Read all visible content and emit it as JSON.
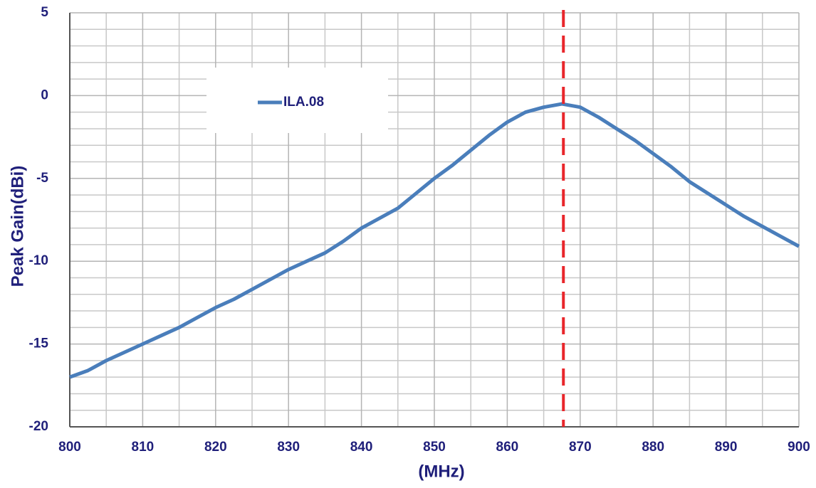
{
  "chart_data": {
    "type": "line",
    "xlabel": "(MHz)",
    "ylabel": "Peak Gain(dBi)",
    "x": [
      800,
      802.5,
      805,
      807.5,
      810,
      812.5,
      815,
      817.5,
      820,
      822.5,
      825,
      827.5,
      830,
      832.5,
      835,
      837.5,
      840,
      842.5,
      845,
      847.5,
      850,
      852.5,
      855,
      857.5,
      860,
      862.5,
      865,
      867.5,
      870,
      872.5,
      875,
      877.5,
      880,
      882.5,
      885,
      887.5,
      890,
      892.5,
      895,
      897.5,
      900
    ],
    "series": [
      {
        "name": "ILA.08",
        "color": "#4a7ebb",
        "values": [
          -17.0,
          -16.6,
          -16.0,
          -15.5,
          -15.0,
          -14.5,
          -14.0,
          -13.4,
          -12.8,
          -12.3,
          -11.7,
          -11.1,
          -10.5,
          -10.0,
          -9.5,
          -8.8,
          -8.0,
          -7.4,
          -6.8,
          -5.9,
          -5.0,
          -4.2,
          -3.3,
          -2.4,
          -1.6,
          -1.0,
          -0.7,
          -0.5,
          -0.7,
          -1.3,
          -2.0,
          -2.7,
          -3.5,
          -4.3,
          -5.2,
          -5.9,
          -6.6,
          -7.3,
          -7.9,
          -8.5,
          -9.1
        ]
      }
    ],
    "xlim": [
      800,
      900
    ],
    "ylim": [
      -20,
      5
    ],
    "xticks": [
      800,
      810,
      820,
      830,
      840,
      850,
      860,
      870,
      880,
      890,
      900
    ],
    "yticks": [
      -20,
      -15,
      -10,
      -5,
      0,
      5
    ],
    "xgrid_minor": [
      805,
      815,
      825,
      835,
      845,
      855,
      865,
      875,
      885,
      895
    ],
    "ygrid_minor": [
      -19,
      -18,
      -17,
      -16,
      -14,
      -13,
      -12,
      -11,
      -9,
      -8,
      -7,
      -6,
      -4,
      -3,
      -2,
      -1,
      1,
      2,
      3,
      4
    ],
    "grid": true,
    "legend": "upper left",
    "vline": {
      "x": 867.7,
      "color": "#e8262b"
    }
  }
}
